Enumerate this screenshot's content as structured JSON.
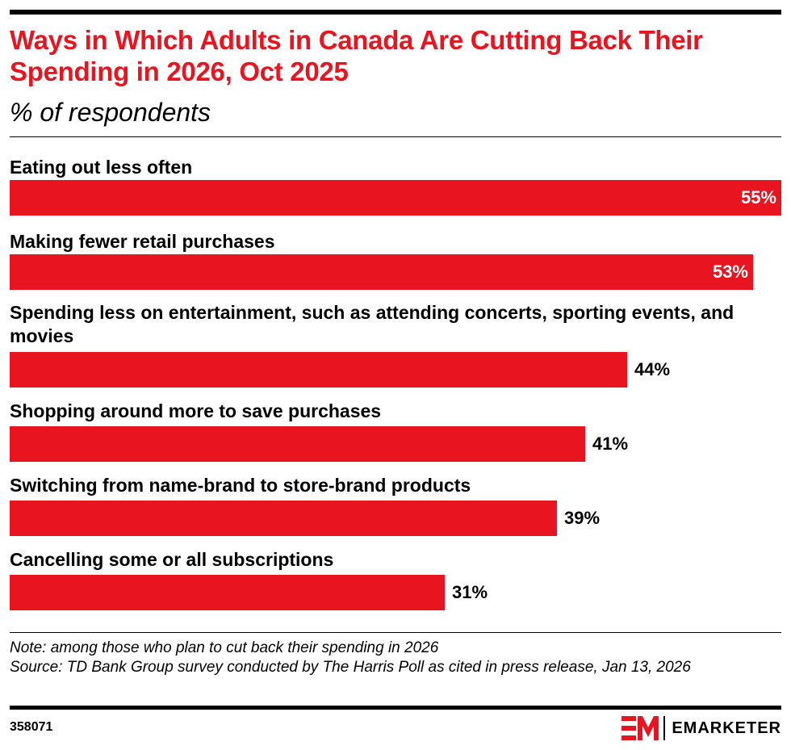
{
  "title": "Ways in Which Adults in Canada Are Cutting Back Their Spending in 2026, Oct 2025",
  "subtitle": "% of respondents",
  "chart_data": {
    "type": "bar",
    "orientation": "horizontal",
    "categories": [
      "Eating out less often",
      "Making fewer retail purchases",
      "Spending less on entertainment, such as attending concerts, sporting events, and movies",
      "Shopping around more to save purchases",
      "Switching from name-brand to store-brand products",
      "Cancelling some or all subscriptions"
    ],
    "values": [
      55,
      53,
      44,
      41,
      39,
      31
    ],
    "value_labels": [
      "55%",
      "53%",
      "44%",
      "41%",
      "39%",
      "31%"
    ],
    "xlim": [
      0,
      55
    ],
    "grid": false,
    "bar_color": "#e8141f",
    "inside_label_color": "#ffffff",
    "outside_label_color": "#000000"
  },
  "footer": {
    "note": "Note: among those who plan to cut back their spending in 2026",
    "source": "Source: TD Bank Group survey conducted by The Harris Poll as cited in press release, Jan 13, 2026",
    "chart_id": "358071",
    "brand": "EMARKETER"
  },
  "colors": {
    "accent": "#e8141f",
    "text": "#000000"
  }
}
